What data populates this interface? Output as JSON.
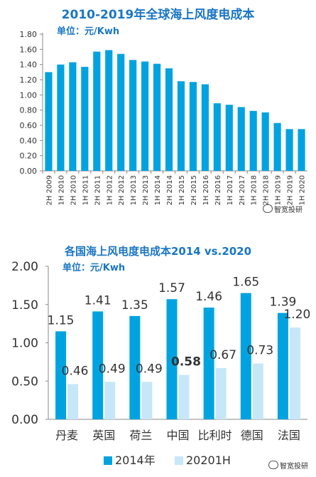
{
  "chart_data": [
    {
      "type": "bar",
      "title": "2010-2019年全球海上风度电成本",
      "unit_label": "单位：元/Kwh",
      "categories": [
        "2H 2009",
        "1H 2010",
        "2H 2010",
        "1H 2011",
        "2H 2011",
        "1H 2012",
        "2H 2012",
        "1H 2013",
        "2H 2013",
        "1H 2014",
        "2H 2014",
        "1H 2015",
        "2H 2015",
        "1H 2016",
        "2H 2016",
        "1H 2017",
        "2H 2017",
        "1H 2018",
        "2H 2018",
        "1H 2019",
        "2H 2019",
        "1H 2020"
      ],
      "values": [
        1.3,
        1.4,
        1.43,
        1.37,
        1.57,
        1.59,
        1.54,
        1.46,
        1.44,
        1.41,
        1.35,
        1.18,
        1.17,
        1.14,
        0.89,
        0.87,
        0.84,
        0.79,
        0.77,
        0.63,
        0.55,
        0.55
      ],
      "ylim": [
        0,
        1.8
      ],
      "yticks": [
        "0.00",
        "0.20",
        "0.40",
        "0.60",
        "0.80",
        "1.00",
        "1.20",
        "1.40",
        "1.60",
        "1.80"
      ],
      "grid": false,
      "color": "#00a3e0"
    },
    {
      "type": "bar",
      "title": "各国海上风电度电成本2014 vs.2020",
      "unit_label": "单位：元/Kwh",
      "categories": [
        "丹麦",
        "英国",
        "荷兰",
        "中国",
        "比利时",
        "德国",
        "法国"
      ],
      "series": [
        {
          "name": "2014年",
          "values": [
            1.15,
            1.41,
            1.35,
            1.57,
            1.46,
            1.65,
            1.39
          ],
          "labels": [
            "1.15",
            "1.41",
            "1.35",
            "1.57",
            "1.46",
            "1.65",
            "1.39"
          ],
          "color": "#00a3e0"
        },
        {
          "name": "20201H",
          "values": [
            0.46,
            0.49,
            0.49,
            0.58,
            0.67,
            0.73,
            1.2
          ],
          "labels": [
            "0.46",
            "0.49",
            "0.49",
            "0.58",
            "0.67",
            "0.73",
            "1.20"
          ],
          "color": "#c6e7f8"
        }
      ],
      "ylim": [
        0,
        2.0
      ],
      "yticks": [
        "0.00",
        "0.50",
        "1.00",
        "1.50",
        "2.00"
      ],
      "legend_position": "bottom",
      "grid": false
    }
  ],
  "watermark": "智宽投研"
}
